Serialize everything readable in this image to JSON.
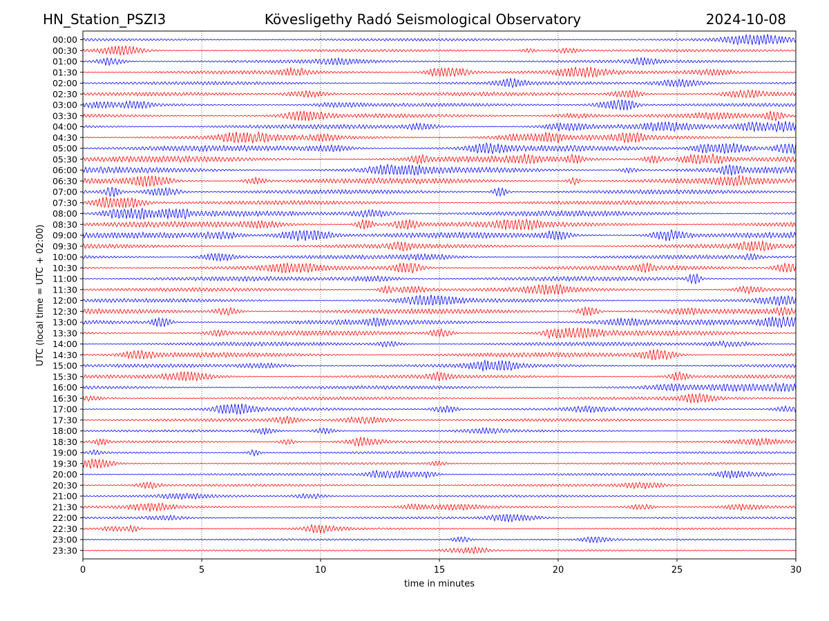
{
  "header": {
    "station": "HN_Station_PSZI3",
    "observatory": "Kövesligethy Radó Seismological Observatory",
    "date": "2024-10-08"
  },
  "chart_data": {
    "type": "line",
    "title": "Kövesligethy Radó Seismological Observatory",
    "xlabel": "time in minutes",
    "ylabel": "UTC (local time = UTC + 02:00)",
    "xlim": [
      0,
      30
    ],
    "x_ticks": [
      "0",
      "5",
      "10",
      "15",
      "20",
      "25",
      "30"
    ],
    "x_tick_values": [
      0,
      5,
      10,
      15,
      20,
      25,
      30
    ],
    "grid": "vertical dotted at x ticks",
    "series_colors": [
      "#0000ff",
      "#ff0000"
    ],
    "row_labels": [
      "00:00",
      "00:30",
      "01:00",
      "01:30",
      "02:00",
      "02:30",
      "03:00",
      "03:30",
      "04:00",
      "04:30",
      "05:00",
      "05:30",
      "06:00",
      "06:30",
      "07:00",
      "07:30",
      "08:00",
      "08:30",
      "09:00",
      "09:30",
      "10:00",
      "10:30",
      "11:00",
      "11:30",
      "12:00",
      "12:30",
      "13:00",
      "13:30",
      "14:00",
      "14:30",
      "15:00",
      "15:30",
      "16:00",
      "16:30",
      "17:00",
      "17:30",
      "18:00",
      "18:30",
      "19:00",
      "19:30",
      "20:00",
      "20:30",
      "21:00",
      "21:30",
      "22:00",
      "22:30",
      "23:00",
      "23:30"
    ],
    "row_activity": [
      0.35,
      0.35,
      0.45,
      0.5,
      0.5,
      0.55,
      0.5,
      0.6,
      0.7,
      0.8,
      0.95,
      1.0,
      1.0,
      0.9,
      0.65,
      0.6,
      0.9,
      0.95,
      0.95,
      0.7,
      0.6,
      0.75,
      0.7,
      0.55,
      0.6,
      0.8,
      0.85,
      0.8,
      0.6,
      0.75,
      0.55,
      0.5,
      0.5,
      0.45,
      0.45,
      0.4,
      0.3,
      0.28,
      0.25,
      0.25,
      0.3,
      0.3,
      0.25,
      0.3,
      0.25,
      0.2,
      0.18,
      0.15
    ]
  }
}
